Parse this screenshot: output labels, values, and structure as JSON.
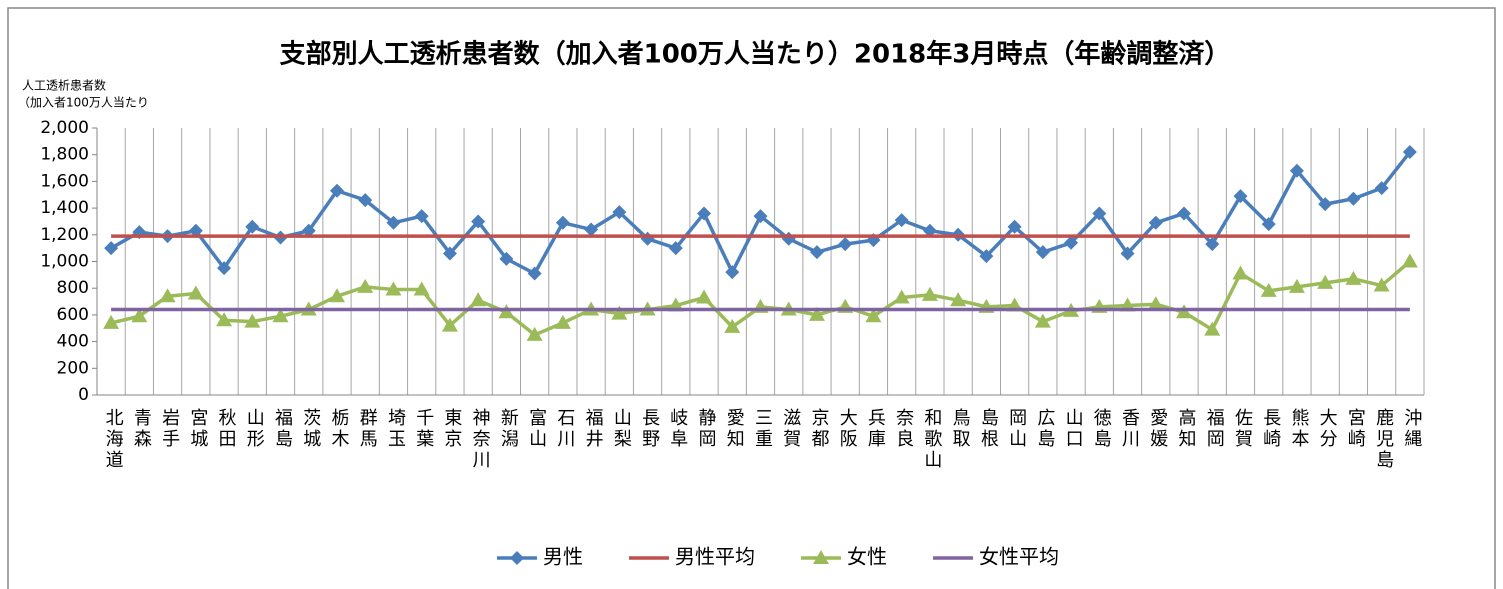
{
  "chart_data": {
    "type": "line",
    "title": "支部別人工透析患者数（加入者100万人当たり）2018年3月時点（年齢調整済）",
    "y_label": [
      "人工透析患者数",
      "（加入者100万人当たり"
    ],
    "categories": [
      "北海道",
      "青森",
      "岩手",
      "宮城",
      "秋田",
      "山形",
      "福島",
      "茨城",
      "栃木",
      "群馬",
      "埼玉",
      "千葉",
      "東京",
      "神奈川",
      "新潟",
      "富山",
      "石川",
      "福井",
      "山梨",
      "長野",
      "岐阜",
      "静岡",
      "愛知",
      "三重",
      "滋賀",
      "京都",
      "大阪",
      "兵庫",
      "奈良",
      "和歌山",
      "鳥取",
      "島根",
      "岡山",
      "広島",
      "山口",
      "徳島",
      "香川",
      "愛媛",
      "高知",
      "福岡",
      "佐賀",
      "長崎",
      "熊本",
      "大分",
      "宮崎",
      "鹿児島",
      "沖縄"
    ],
    "series": [
      {
        "name": "男性",
        "color": "#4a7ebb",
        "marker": "diamond",
        "values": [
          1100,
          1220,
          1190,
          1230,
          950,
          1260,
          1180,
          1230,
          1530,
          1460,
          1290,
          1340,
          1060,
          1300,
          1020,
          910,
          1290,
          1240,
          1370,
          1170,
          1100,
          1360,
          920,
          1340,
          1170,
          1070,
          1130,
          1160,
          1310,
          1230,
          1200,
          1040,
          1260,
          1070,
          1140,
          1360,
          1060,
          1290,
          1360,
          1130,
          1490,
          1280,
          1680,
          1430,
          1470,
          1550,
          1820
        ]
      },
      {
        "name": "男性平均",
        "color": "#c0504d",
        "marker": "none",
        "values": [
          1190,
          1190,
          1190,
          1190,
          1190,
          1190,
          1190,
          1190,
          1190,
          1190,
          1190,
          1190,
          1190,
          1190,
          1190,
          1190,
          1190,
          1190,
          1190,
          1190,
          1190,
          1190,
          1190,
          1190,
          1190,
          1190,
          1190,
          1190,
          1190,
          1190,
          1190,
          1190,
          1190,
          1190,
          1190,
          1190,
          1190,
          1190,
          1190,
          1190,
          1190,
          1190,
          1190,
          1190,
          1190,
          1190,
          1190
        ]
      },
      {
        "name": "女性",
        "color": "#9bbb59",
        "marker": "triangle",
        "values": [
          540,
          590,
          740,
          760,
          560,
          550,
          590,
          640,
          740,
          810,
          790,
          790,
          520,
          710,
          620,
          450,
          540,
          640,
          610,
          640,
          670,
          730,
          510,
          660,
          640,
          600,
          660,
          590,
          730,
          750,
          710,
          660,
          670,
          550,
          630,
          660,
          670,
          680,
          620,
          490,
          910,
          780,
          810,
          840,
          870,
          820,
          1000
        ]
      },
      {
        "name": "女性平均",
        "color": "#8064a2",
        "marker": "none",
        "values": [
          640,
          640,
          640,
          640,
          640,
          640,
          640,
          640,
          640,
          640,
          640,
          640,
          640,
          640,
          640,
          640,
          640,
          640,
          640,
          640,
          640,
          640,
          640,
          640,
          640,
          640,
          640,
          640,
          640,
          640,
          640,
          640,
          640,
          640,
          640,
          640,
          640,
          640,
          640,
          640,
          640,
          640,
          640,
          640,
          640,
          640,
          640
        ]
      }
    ],
    "ylim": [
      0,
      2000
    ],
    "yticks": [
      0,
      200,
      400,
      600,
      800,
      {
        "value": 1000,
        "label": "1,000"
      },
      {
        "value": 1200,
        "label": "1,200"
      },
      {
        "value": 1400,
        "label": "1,400"
      },
      {
        "value": 1600,
        "label": "1,600"
      },
      {
        "value": 1800,
        "label": "1,800"
      },
      {
        "value": 2000,
        "label": "2,000"
      }
    ],
    "legend": "bottom",
    "grid": "vertical"
  }
}
